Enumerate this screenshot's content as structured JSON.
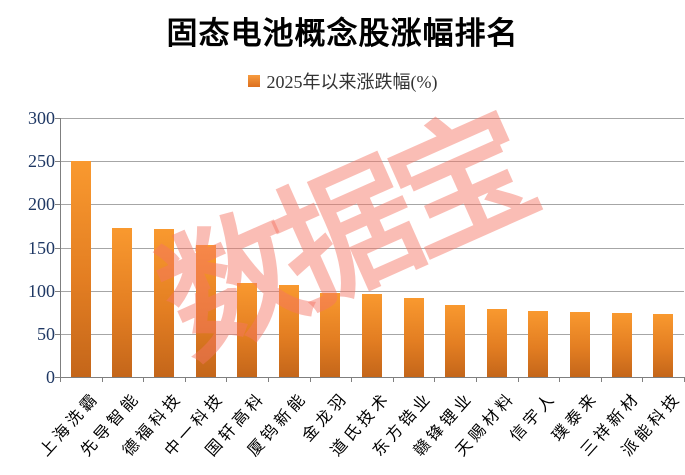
{
  "title": "固态电池概念股涨幅排名",
  "legend": {
    "label": "2025年以来涨跌幅(%)"
  },
  "watermark": "数据宝",
  "colors": {
    "bar_gradient_top": "#F9992F",
    "bar_gradient_bottom": "#C4661A",
    "gridline": "#A6A6A6",
    "axis": "#7F7F7F",
    "y_tick_label": "#1F3864",
    "watermark": "#F47664",
    "title": "#000000"
  },
  "chart_data": {
    "type": "bar",
    "title": "固态电池概念股涨幅排名",
    "legend_entries": [
      "2025年以来涨跌幅(%)"
    ],
    "legend_position": "top",
    "grid": true,
    "xlabel": "",
    "ylabel": "",
    "ylim": [
      0,
      300
    ],
    "yticks": [
      300,
      250,
      200,
      150,
      100,
      50,
      0
    ],
    "categories": [
      "上海洗霸",
      "先导智能",
      "德福科技",
      "中一科技",
      "国轩高科",
      "厦钨新能",
      "金龙羽",
      "道氏技术",
      "东方锆业",
      "赣锋锂业",
      "天赐材料",
      "信宇人",
      "璞泰来",
      "三祥新材",
      "派能科技"
    ],
    "values": [
      250,
      173,
      172,
      153,
      109,
      106,
      97,
      96,
      92,
      83,
      79,
      76,
      75,
      74,
      73
    ]
  }
}
